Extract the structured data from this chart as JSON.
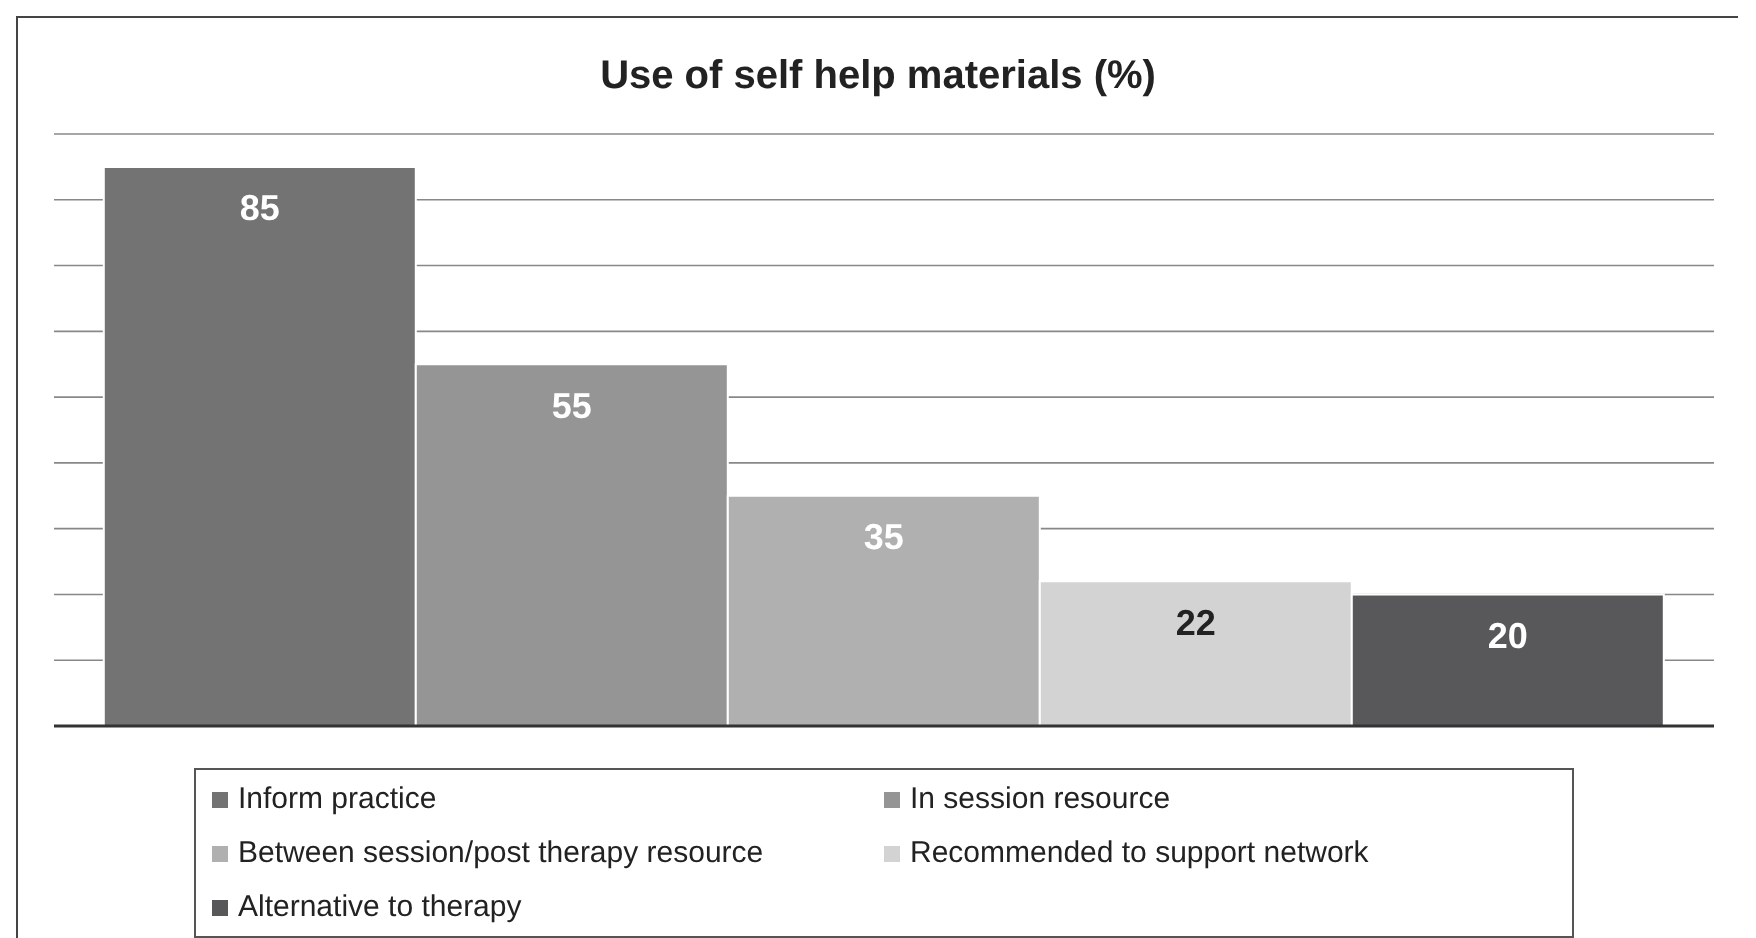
{
  "chart_data": {
    "type": "bar",
    "title": "Use of self help materials (%)",
    "categories": [
      null
    ],
    "series": [
      {
        "name": "Inform practice",
        "color": "#737373",
        "values": [
          85
        ]
      },
      {
        "name": "In session resource",
        "color": "#959595",
        "values": [
          55
        ]
      },
      {
        "name": "Between session/post therapy resource",
        "color": "#b0b0b0",
        "values": [
          35
        ]
      },
      {
        "name": "Recommended to support network",
        "color": "#d3d3d3",
        "values": [
          22
        ]
      },
      {
        "name": "Alternative to therapy",
        "color": "#58585a",
        "values": [
          20
        ]
      }
    ],
    "ylim": [
      0,
      90
    ],
    "yticks": [
      {
        "value": 0,
        "label": null
      },
      {
        "value": 10,
        "label": null
      },
      {
        "value": 20,
        "label": null
      },
      {
        "value": 30,
        "label": null
      },
      {
        "value": 40,
        "label": null
      },
      {
        "value": 50,
        "label": null
      },
      {
        "value": 60,
        "label": null
      },
      {
        "value": 70,
        "label": null
      },
      {
        "value": 80,
        "label": null
      },
      {
        "value": 90,
        "label": null
      }
    ],
    "tick_labels": false,
    "grid": "y",
    "data_labels": true,
    "legend": "bottom"
  }
}
